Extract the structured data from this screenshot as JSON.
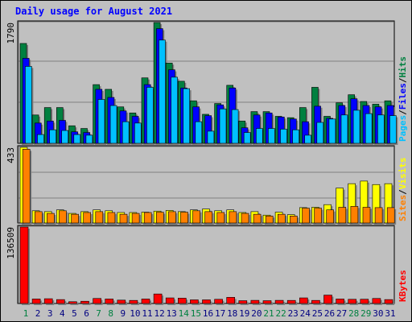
{
  "title": "Daily usage for August 2021",
  "chart_data": [
    {
      "type": "bar",
      "panel": "top",
      "ymax_label": "1790",
      "ylim": [
        0,
        1790
      ],
      "grid": true,
      "categories": [
        "1",
        "2",
        "3",
        "4",
        "5",
        "6",
        "7",
        "8",
        "9",
        "10",
        "11",
        "12",
        "13",
        "14",
        "15",
        "16",
        "17",
        "18",
        "19",
        "20",
        "21",
        "22",
        "23",
        "24",
        "25",
        "26",
        "27",
        "28",
        "29",
        "30",
        "31"
      ],
      "series": [
        {
          "name": "Hits",
          "color": "#008040",
          "values": [
            1480,
            420,
            530,
            530,
            260,
            220,
            870,
            800,
            540,
            450,
            970,
            1790,
            1190,
            920,
            630,
            430,
            590,
            860,
            330,
            470,
            470,
            400,
            380,
            530,
            830,
            400,
            600,
            720,
            620,
            580,
            630
          ]
        },
        {
          "name": "Files",
          "color": "#0000ff",
          "values": [
            1260,
            300,
            330,
            340,
            170,
            160,
            800,
            680,
            480,
            400,
            870,
            1700,
            1090,
            820,
            540,
            410,
            570,
            820,
            230,
            420,
            450,
            390,
            360,
            320,
            550,
            370,
            560,
            660,
            560,
            540,
            560
          ]
        },
        {
          "name": "Pages",
          "color": "#00c0ff",
          "values": [
            1140,
            130,
            200,
            190,
            130,
            120,
            650,
            560,
            320,
            300,
            830,
            1530,
            980,
            810,
            320,
            180,
            510,
            500,
            160,
            220,
            220,
            210,
            200,
            120,
            310,
            360,
            420,
            490,
            440,
            420,
            410
          ]
        }
      ],
      "legend": [
        "Pages",
        "/",
        "Files",
        "/",
        "Hits"
      ],
      "legend_colors": [
        "#00c0ff",
        "#000000",
        "#0000ff",
        "#000000",
        "#008040"
      ]
    },
    {
      "type": "bar",
      "panel": "middle",
      "ymax_label": "433",
      "ylim": [
        0,
        433
      ],
      "grid": true,
      "categories": [
        "1",
        "2",
        "3",
        "4",
        "5",
        "6",
        "7",
        "8",
        "9",
        "10",
        "11",
        "12",
        "13",
        "14",
        "15",
        "16",
        "17",
        "18",
        "19",
        "20",
        "21",
        "22",
        "23",
        "24",
        "25",
        "26",
        "27",
        "28",
        "29",
        "30",
        "31"
      ],
      "series": [
        {
          "name": "Visits",
          "color": "#ffff00",
          "values": [
            433,
            70,
            65,
            75,
            55,
            65,
            75,
            70,
            60,
            60,
            62,
            68,
            72,
            65,
            75,
            80,
            70,
            75,
            60,
            65,
            45,
            62,
            48,
            88,
            90,
            105,
            200,
            225,
            240,
            220,
            225
          ]
        },
        {
          "name": "Sites",
          "color": "#ff8000",
          "values": [
            422,
            65,
            55,
            70,
            50,
            60,
            65,
            60,
            50,
            55,
            60,
            62,
            65,
            62,
            70,
            65,
            60,
            65,
            55,
            50,
            40,
            50,
            40,
            85,
            85,
            75,
            90,
            95,
            90,
            88,
            88
          ]
        }
      ],
      "legend": [
        "Sites",
        "/",
        "Visits"
      ],
      "legend_colors": [
        "#ff8000",
        "#000000",
        "#ffff00"
      ]
    },
    {
      "type": "bar",
      "panel": "bottom",
      "ymax_label": "136509",
      "ylim": [
        0,
        136509
      ],
      "grid": false,
      "categories": [
        "1",
        "2",
        "3",
        "4",
        "5",
        "6",
        "7",
        "8",
        "9",
        "10",
        "11",
        "12",
        "13",
        "14",
        "15",
        "16",
        "17",
        "18",
        "19",
        "20",
        "21",
        "22",
        "23",
        "24",
        "25",
        "26",
        "27",
        "28",
        "29",
        "30",
        "31"
      ],
      "series": [
        {
          "name": "KBytes",
          "color": "#ff0000",
          "values": [
            136509,
            8000,
            8500,
            7000,
            3200,
            4000,
            9000,
            8000,
            6000,
            5500,
            8000,
            17000,
            10000,
            9500,
            6500,
            6500,
            7500,
            11000,
            5000,
            5600,
            5000,
            5600,
            5500,
            10000,
            5500,
            15000,
            8000,
            7500,
            7600,
            9000,
            7000
          ]
        }
      ],
      "legend": [
        "KBytes"
      ],
      "legend_colors": [
        "#ff0000"
      ]
    }
  ],
  "x_tick_colors": [
    "#008040",
    "#000080",
    "#000080",
    "#000080",
    "#000080",
    "#000080",
    "#008040",
    "#008040",
    "#000080",
    "#000080",
    "#000080",
    "#000080",
    "#000080",
    "#008040",
    "#008040",
    "#000080",
    "#000080",
    "#000080",
    "#000080",
    "#000080",
    "#008040",
    "#008040",
    "#000080",
    "#000080",
    "#000080",
    "#000080",
    "#000080",
    "#008040",
    "#008040",
    "#000080",
    "#000080"
  ]
}
